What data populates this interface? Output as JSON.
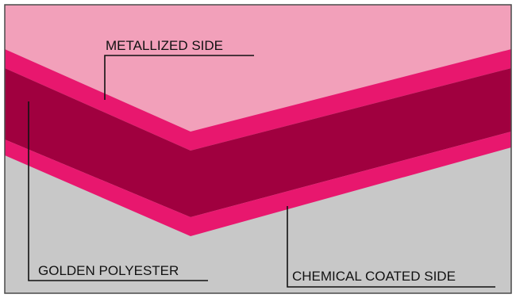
{
  "diagram": {
    "labels": {
      "top": "METALLIZED SIDE",
      "left": "GOLDEN POLYESTER",
      "right": "CHEMICAL COATED SIDE"
    },
    "colors": {
      "upper_region": "#F2A0BA",
      "lower_region": "#C8C8C8",
      "outer_layers": "#E8176E",
      "core_layer": "#A0003F",
      "frame": "#4a4a4a"
    }
  }
}
